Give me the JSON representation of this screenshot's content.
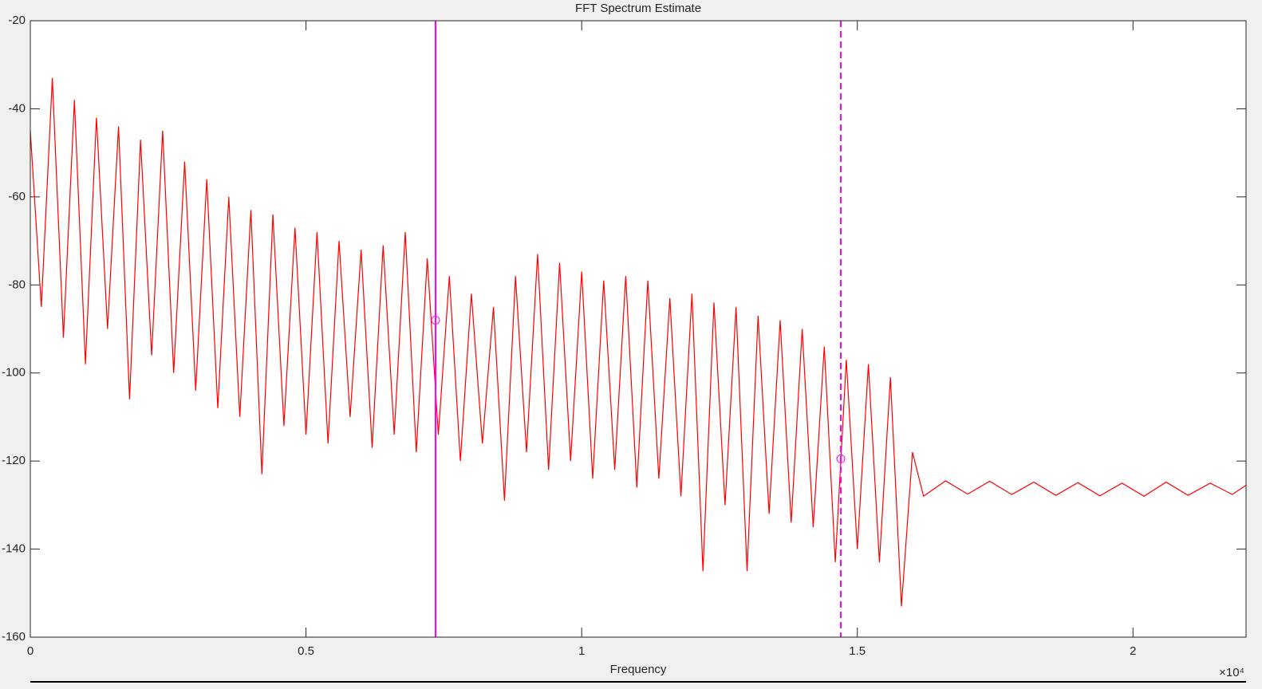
{
  "chart_data": {
    "type": "line",
    "title": "FFT Spectrum Estimate",
    "xlabel": "Frequency",
    "x_exponent_label": "×10⁴",
    "xlim": [
      0,
      22050
    ],
    "ylim": [
      -160,
      -20
    ],
    "xticks": [
      0,
      {
        "value": 5000,
        "label": "0.5"
      },
      {
        "value": 10000,
        "label": "1"
      },
      {
        "value": 15000,
        "label": "1.5"
      },
      {
        "value": 20000,
        "label": "2"
      }
    ],
    "yticks": [
      -160,
      -140,
      -120,
      -100,
      -80,
      -60,
      -40,
      -20
    ],
    "series": [
      {
        "color": "#ff0000",
        "x": [
          0,
          200,
          400,
          600,
          800,
          1000,
          1200,
          1400,
          1600,
          1800,
          2000,
          2200,
          2400,
          2600,
          2800,
          3000,
          3200,
          3400,
          3600,
          3800,
          4000,
          4200,
          4400,
          4600,
          4800,
          5000,
          5200,
          5400,
          5600,
          5800,
          6000,
          6200,
          6400,
          6600,
          6800,
          7000,
          7200,
          7400,
          7600,
          7800,
          8000,
          8200,
          8400,
          8600,
          8800,
          9000,
          9200,
          9400,
          9600,
          9800,
          10000,
          10200,
          10400,
          10600,
          10800,
          11000,
          11200,
          11400,
          11600,
          11800,
          12000,
          12200,
          12400,
          12600,
          12800,
          13000,
          13200,
          13400,
          13600,
          13800,
          14000,
          14200,
          14400,
          14600,
          14800,
          15000,
          15200,
          15400,
          15600,
          15800,
          16000,
          16200,
          16600,
          17000,
          17400,
          17800,
          18200,
          18600,
          19000,
          19400,
          19800,
          20200,
          20600,
          21000,
          21400,
          21800,
          22050
        ],
        "values": [
          -45,
          -85,
          -33,
          -92,
          -38,
          -98,
          -42,
          -90,
          -44,
          -106,
          -47,
          -96,
          -45,
          -100,
          -52,
          -104,
          -56,
          -108,
          -60,
          -110,
          -63,
          -123,
          -64,
          -112,
          -67,
          -114,
          -68,
          -116,
          -70,
          -110,
          -72,
          -117,
          -71,
          -114,
          -68,
          -118,
          -74,
          -114,
          -78,
          -120,
          -82,
          -116,
          -85,
          -129,
          -78,
          -118,
          -73,
          -122,
          -75,
          -120,
          -77,
          -124,
          -79,
          -122,
          -78,
          -126,
          -79,
          -124,
          -83,
          -128,
          -82,
          -145,
          -84,
          -130,
          -85,
          -145,
          -87,
          -132,
          -88,
          -134,
          -90,
          -135,
          -94,
          -143,
          -97,
          -140,
          -98,
          -143,
          -101,
          -153,
          -118,
          -128,
          -124.5,
          -127.5,
          -124.6,
          -127.6,
          -124.8,
          -127.8,
          -124.9,
          -127.9,
          -125,
          -128,
          -124.8,
          -127.8,
          -125,
          -127.6,
          -125.5
        ]
      }
    ],
    "cursors": [
      {
        "x": 7350,
        "y": -88,
        "style": "solid",
        "color": "#ff00ff"
      },
      {
        "x": 14700,
        "y": -119.5,
        "style": "dashed",
        "color": "#ff00ff"
      }
    ]
  }
}
